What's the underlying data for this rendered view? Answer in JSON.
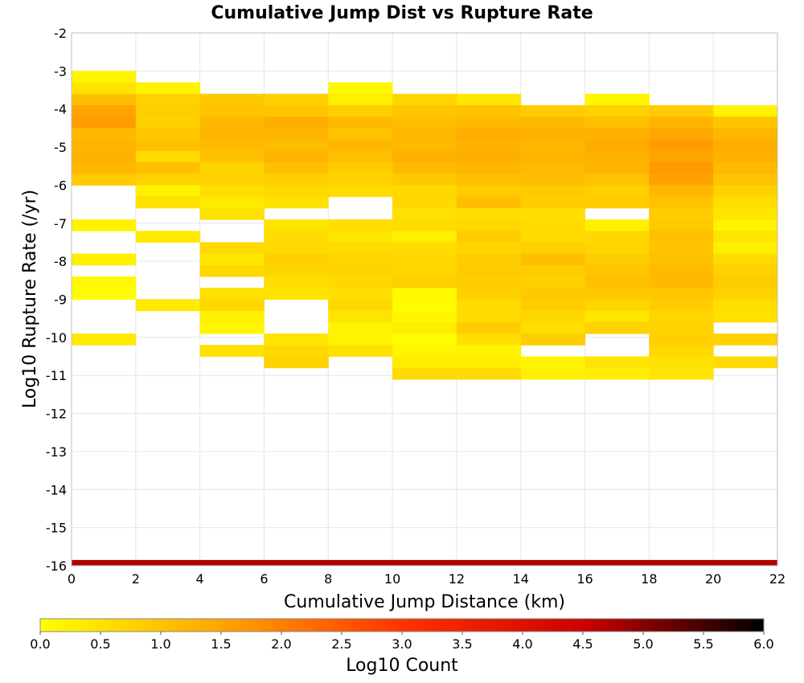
{
  "chart_data": {
    "type": "heatmap",
    "title": "Cumulative Jump Dist vs Rupture Rate",
    "xlabel": "Cumulative Jump Distance (km)",
    "ylabel": "Log10 Rupture Rate (/yr)",
    "xlim": [
      0,
      22
    ],
    "ylim": [
      -16,
      -2
    ],
    "x_ticks": [
      0,
      2,
      4,
      6,
      8,
      10,
      12,
      14,
      16,
      18,
      20,
      22
    ],
    "y_ticks": [
      -16,
      -15,
      -14,
      -13,
      -12,
      -11,
      -10,
      -9,
      -8,
      -7,
      -6,
      -5,
      -4,
      -3,
      -2
    ],
    "x_bin_width": 2,
    "y_bin_height": 0.3,
    "grid": true,
    "colorbar": {
      "label": "Log10 Count",
      "range": [
        0.0,
        6.0
      ],
      "ticks": [
        "0.0",
        "0.5",
        "1.0",
        "1.5",
        "2.0",
        "2.5",
        "3.0",
        "3.5",
        "4.0",
        "4.5",
        "5.0",
        "5.5",
        "6.0"
      ],
      "placement": "bottom",
      "colormap": [
        "#ffff00",
        "#ffa500",
        "#ff3300",
        "#cc0000",
        "#000000"
      ]
    },
    "bottom_band": {
      "x_range": [
        0,
        22
      ],
      "y_range": [
        -16,
        -15.85
      ],
      "value": 4.7
    },
    "columns": [
      {
        "x": 0,
        "cells": [
          [
            -3.3,
            0.15
          ],
          [
            -3.6,
            0.45
          ],
          [
            -3.9,
            1.1
          ],
          [
            -4.2,
            1.5
          ],
          [
            -4.5,
            1.6
          ],
          [
            -4.8,
            1.2
          ],
          [
            -5.1,
            1.25
          ],
          [
            -5.4,
            1.3
          ],
          [
            -5.7,
            1.2
          ],
          [
            -6.0,
            0.85
          ],
          [
            -7.2,
            0.2
          ],
          [
            -8.1,
            0.25
          ],
          [
            -8.7,
            0.1
          ],
          [
            -9.0,
            0.05
          ],
          [
            -10.2,
            0.35
          ]
        ]
      },
      {
        "x": 2,
        "cells": [
          [
            -3.6,
            0.2
          ],
          [
            -3.9,
            0.75
          ],
          [
            -4.2,
            0.85
          ],
          [
            -4.5,
            0.8
          ],
          [
            -4.8,
            0.95
          ],
          [
            -5.1,
            1.05
          ],
          [
            -5.4,
            0.6
          ],
          [
            -5.7,
            1.05
          ],
          [
            -6.0,
            0.75
          ],
          [
            -6.3,
            0.2
          ],
          [
            -6.6,
            0.5
          ],
          [
            -7.5,
            0.35
          ],
          [
            -9.3,
            0.35
          ]
        ]
      },
      {
        "x": 4,
        "cells": [
          [
            -3.9,
            0.9
          ],
          [
            -4.2,
            1.0
          ],
          [
            -4.5,
            1.2
          ],
          [
            -4.8,
            1.25
          ],
          [
            -5.1,
            1.15
          ],
          [
            -5.4,
            1.05
          ],
          [
            -5.7,
            0.7
          ],
          [
            -6.0,
            0.75
          ],
          [
            -6.3,
            0.55
          ],
          [
            -6.6,
            0.35
          ],
          [
            -6.9,
            0.5
          ],
          [
            -7.8,
            0.6
          ],
          [
            -8.1,
            0.4
          ],
          [
            -8.4,
            0.65
          ],
          [
            -9.0,
            0.5
          ],
          [
            -9.3,
            0.65
          ],
          [
            -9.6,
            0.25
          ],
          [
            -9.9,
            0.15
          ],
          [
            -10.5,
            0.5
          ]
        ]
      },
      {
        "x": 6,
        "cells": [
          [
            -3.9,
            0.8
          ],
          [
            -4.2,
            0.95
          ],
          [
            -4.5,
            1.35
          ],
          [
            -4.8,
            1.25
          ],
          [
            -5.1,
            1.1
          ],
          [
            -5.4,
            1.25
          ],
          [
            -5.7,
            1.05
          ],
          [
            -6.0,
            0.8
          ],
          [
            -6.3,
            0.65
          ],
          [
            -6.6,
            0.5
          ],
          [
            -7.2,
            0.45
          ],
          [
            -7.5,
            0.6
          ],
          [
            -7.8,
            0.65
          ],
          [
            -8.1,
            0.8
          ],
          [
            -8.4,
            0.7
          ],
          [
            -8.7,
            0.55
          ],
          [
            -9.0,
            0.45
          ],
          [
            -10.2,
            0.45
          ],
          [
            -10.5,
            0.65
          ],
          [
            -10.8,
            0.75
          ]
        ]
      },
      {
        "x": 8,
        "cells": [
          [
            -3.6,
            0.1
          ],
          [
            -3.9,
            0.25
          ],
          [
            -4.2,
            0.8
          ],
          [
            -4.5,
            1.15
          ],
          [
            -4.8,
            1.0
          ],
          [
            -5.1,
            1.2
          ],
          [
            -5.4,
            1.05
          ],
          [
            -5.7,
            0.85
          ],
          [
            -6.0,
            0.75
          ],
          [
            -6.3,
            0.6
          ],
          [
            -7.2,
            0.55
          ],
          [
            -7.5,
            0.4
          ],
          [
            -7.8,
            0.6
          ],
          [
            -8.1,
            0.7
          ],
          [
            -8.4,
            0.75
          ],
          [
            -8.7,
            0.65
          ],
          [
            -9.0,
            0.55
          ],
          [
            -9.3,
            0.65
          ],
          [
            -9.6,
            0.45
          ],
          [
            -9.9,
            0.2
          ],
          [
            -10.2,
            0.2
          ],
          [
            -10.5,
            0.5
          ]
        ]
      },
      {
        "x": 10,
        "cells": [
          [
            -3.9,
            0.7
          ],
          [
            -4.2,
            0.95
          ],
          [
            -4.5,
            1.1
          ],
          [
            -4.8,
            1.2
          ],
          [
            -5.1,
            1.15
          ],
          [
            -5.4,
            1.3
          ],
          [
            -5.7,
            1.15
          ],
          [
            -6.0,
            0.9
          ],
          [
            -6.3,
            0.65
          ],
          [
            -6.6,
            0.65
          ],
          [
            -6.9,
            0.5
          ],
          [
            -7.2,
            0.6
          ],
          [
            -7.5,
            0.25
          ],
          [
            -7.8,
            0.6
          ],
          [
            -8.1,
            0.65
          ],
          [
            -8.4,
            0.65
          ],
          [
            -8.7,
            0.8
          ],
          [
            -9.0,
            0.1
          ],
          [
            -9.3,
            0.05
          ],
          [
            -9.6,
            0.15
          ],
          [
            -9.9,
            0.3
          ],
          [
            -10.2,
            0.05
          ],
          [
            -10.5,
            0.15
          ],
          [
            -10.8,
            0.3
          ],
          [
            -11.1,
            0.6
          ]
        ]
      },
      {
        "x": 12,
        "cells": [
          [
            -3.9,
            0.4
          ],
          [
            -4.2,
            1.0
          ],
          [
            -4.5,
            1.15
          ],
          [
            -4.8,
            1.35
          ],
          [
            -5.1,
            1.3
          ],
          [
            -5.4,
            1.35
          ],
          [
            -5.7,
            1.25
          ],
          [
            -6.0,
            1.05
          ],
          [
            -6.3,
            0.85
          ],
          [
            -6.6,
            1.1
          ],
          [
            -6.9,
            0.55
          ],
          [
            -7.2,
            0.65
          ],
          [
            -7.5,
            0.85
          ],
          [
            -7.8,
            0.7
          ],
          [
            -8.1,
            0.85
          ],
          [
            -8.4,
            0.9
          ],
          [
            -8.7,
            0.85
          ],
          [
            -9.0,
            0.8
          ],
          [
            -9.3,
            0.6
          ],
          [
            -9.6,
            0.6
          ],
          [
            -9.9,
            0.85
          ],
          [
            -10.2,
            0.55
          ],
          [
            -10.5,
            0.2
          ],
          [
            -10.8,
            0.3
          ],
          [
            -11.1,
            0.6
          ]
        ]
      },
      {
        "x": 14,
        "cells": [
          [
            -4.2,
            0.85
          ],
          [
            -4.5,
            1.15
          ],
          [
            -4.8,
            1.3
          ],
          [
            -5.1,
            1.2
          ],
          [
            -5.4,
            1.25
          ],
          [
            -5.7,
            1.15
          ],
          [
            -6.0,
            1.1
          ],
          [
            -6.3,
            0.9
          ],
          [
            -6.6,
            0.85
          ],
          [
            -6.9,
            0.55
          ],
          [
            -7.2,
            0.6
          ],
          [
            -7.5,
            0.6
          ],
          [
            -7.8,
            0.8
          ],
          [
            -8.1,
            1.1
          ],
          [
            -8.4,
            0.85
          ],
          [
            -8.7,
            0.8
          ],
          [
            -9.0,
            0.9
          ],
          [
            -9.3,
            0.85
          ],
          [
            -9.6,
            0.65
          ],
          [
            -9.9,
            0.55
          ],
          [
            -10.2,
            0.85
          ],
          [
            -10.8,
            0.15
          ],
          [
            -11.1,
            0.25
          ]
        ]
      },
      {
        "x": 16,
        "cells": [
          [
            -3.9,
            0.15
          ],
          [
            -4.2,
            0.75
          ],
          [
            -4.5,
            1.05
          ],
          [
            -4.8,
            1.3
          ],
          [
            -5.1,
            1.4
          ],
          [
            -5.4,
            1.3
          ],
          [
            -5.7,
            1.25
          ],
          [
            -6.0,
            1.0
          ],
          [
            -6.3,
            0.8
          ],
          [
            -6.6,
            0.85
          ],
          [
            -7.2,
            0.25
          ],
          [
            -7.5,
            0.65
          ],
          [
            -7.8,
            0.7
          ],
          [
            -8.1,
            0.85
          ],
          [
            -8.4,
            0.95
          ],
          [
            -8.7,
            1.05
          ],
          [
            -9.0,
            0.9
          ],
          [
            -9.3,
            0.7
          ],
          [
            -9.6,
            0.4
          ],
          [
            -9.9,
            0.75
          ],
          [
            -10.8,
            0.45
          ],
          [
            -11.1,
            0.3
          ]
        ]
      },
      {
        "x": 18,
        "cells": [
          [
            -4.2,
            0.85
          ],
          [
            -4.5,
            1.25
          ],
          [
            -4.8,
            1.45
          ],
          [
            -5.1,
            1.6
          ],
          [
            -5.4,
            1.5
          ],
          [
            -5.7,
            1.65
          ],
          [
            -6.0,
            1.55
          ],
          [
            -6.3,
            1.2
          ],
          [
            -6.6,
            1.0
          ],
          [
            -6.9,
            0.85
          ],
          [
            -7.2,
            0.9
          ],
          [
            -7.5,
            1.05
          ],
          [
            -7.8,
            1.0
          ],
          [
            -8.1,
            1.05
          ],
          [
            -8.4,
            1.15
          ],
          [
            -8.7,
            1.15
          ],
          [
            -9.0,
            0.95
          ],
          [
            -9.3,
            0.85
          ],
          [
            -9.6,
            0.7
          ],
          [
            -9.9,
            0.75
          ],
          [
            -10.2,
            0.8
          ],
          [
            -10.5,
            0.65
          ],
          [
            -10.8,
            0.5
          ],
          [
            -11.1,
            0.45
          ]
        ]
      },
      {
        "x": 20,
        "cells": [
          [
            -4.2,
            0.2
          ],
          [
            -4.5,
            0.95
          ],
          [
            -4.8,
            1.2
          ],
          [
            -5.1,
            1.35
          ],
          [
            -5.4,
            1.3
          ],
          [
            -5.7,
            1.15
          ],
          [
            -6.0,
            1.0
          ],
          [
            -6.3,
            0.75
          ],
          [
            -6.6,
            0.55
          ],
          [
            -6.9,
            0.45
          ],
          [
            -7.2,
            0.2
          ],
          [
            -7.5,
            0.45
          ],
          [
            -7.8,
            0.25
          ],
          [
            -8.1,
            0.6
          ],
          [
            -8.4,
            0.75
          ],
          [
            -8.7,
            0.85
          ],
          [
            -9.0,
            0.75
          ],
          [
            -9.3,
            0.55
          ],
          [
            -9.6,
            0.5
          ],
          [
            -10.2,
            0.75
          ],
          [
            -10.8,
            0.6
          ]
        ]
      }
    ]
  }
}
